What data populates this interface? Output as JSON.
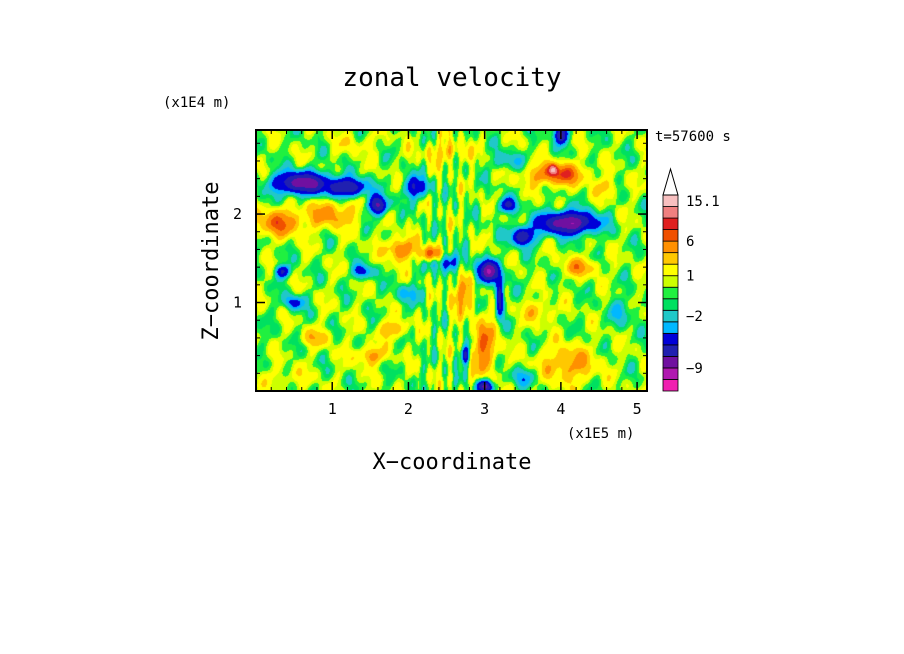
{
  "chart_data": {
    "type": "heatmap",
    "title": "zonal velocity",
    "xlabel": "X−coordinate",
    "ylabel": "Z−coordinate",
    "x_unit": "(x1E5 m)",
    "y_unit": "(x1E4 m)",
    "time_label": "t=57600 s",
    "xlim": [
      0,
      5.13
    ],
    "ylim": [
      0,
      2.95
    ],
    "x_ticks": [
      1,
      2,
      3,
      4,
      5
    ],
    "x_tick_labels": [
      "1",
      "2",
      "3",
      "4",
      "5"
    ],
    "y_ticks": [
      1,
      2
    ],
    "y_tick_labels": [
      "1",
      "2"
    ],
    "colorbar": {
      "colors": [
        "#f020b0",
        "#b018b0",
        "#7010a0",
        "#2020b0",
        "#0000d8",
        "#00b8ff",
        "#20c8c8",
        "#00e060",
        "#20f040",
        "#ccff00",
        "#ffff00",
        "#ffc800",
        "#ff9000",
        "#f05000",
        "#e02020",
        "#f08080",
        "#f8c0c0"
      ],
      "tick_labels": [
        "15.1",
        "6",
        "1",
        "−2",
        "−9"
      ],
      "tick_level_index": [
        16.5,
        13,
        10,
        6.5,
        2
      ]
    },
    "features": [
      {
        "x": 0.6,
        "z": 2.35,
        "sx": 0.35,
        "sz": 0.12,
        "v": -9
      },
      {
        "x": 1.2,
        "z": 2.3,
        "sx": 0.25,
        "sz": 0.1,
        "v": -7
      },
      {
        "x": 1.6,
        "z": 2.1,
        "sx": 0.12,
        "sz": 0.1,
        "v": -8
      },
      {
        "x": 2.1,
        "z": 2.3,
        "sx": 0.15,
        "sz": 0.12,
        "v": -5
      },
      {
        "x": 4.1,
        "z": 1.9,
        "sx": 0.35,
        "sz": 0.12,
        "v": -10
      },
      {
        "x": 3.5,
        "z": 1.75,
        "sx": 0.15,
        "sz": 0.1,
        "v": -7
      },
      {
        "x": 3.05,
        "z": 1.35,
        "sx": 0.15,
        "sz": 0.12,
        "v": -9
      },
      {
        "x": 3.3,
        "z": 2.1,
        "sx": 0.12,
        "sz": 0.08,
        "v": -5
      },
      {
        "x": 3.2,
        "z": 1.05,
        "sx": 0.05,
        "sz": 0.2,
        "v": -7
      },
      {
        "x": 4.0,
        "z": 2.9,
        "sx": 0.08,
        "sz": 0.1,
        "v": -8
      },
      {
        "x": 3.0,
        "z": 0.05,
        "sx": 0.1,
        "sz": 0.07,
        "v": -8
      },
      {
        "x": 2.75,
        "z": 0.4,
        "sx": 0.05,
        "sz": 0.1,
        "v": -6
      },
      {
        "x": 0.35,
        "z": 1.35,
        "sx": 0.1,
        "sz": 0.07,
        "v": -5
      },
      {
        "x": 1.4,
        "z": 1.35,
        "sx": 0.12,
        "sz": 0.08,
        "v": -4
      },
      {
        "x": 2.5,
        "z": 1.45,
        "sx": 0.18,
        "sz": 0.1,
        "v": -4
      },
      {
        "x": 0.5,
        "z": 1.0,
        "sx": 0.12,
        "sz": 0.08,
        "v": -4
      },
      {
        "x": 0.3,
        "z": 1.9,
        "sx": 0.3,
        "sz": 0.15,
        "v": 4
      },
      {
        "x": 1.0,
        "z": 2.0,
        "sx": 0.35,
        "sz": 0.15,
        "v": 3
      },
      {
        "x": 1.9,
        "z": 1.6,
        "sx": 0.2,
        "sz": 0.12,
        "v": 4
      },
      {
        "x": 2.3,
        "z": 1.55,
        "sx": 0.12,
        "sz": 0.08,
        "v": 5
      },
      {
        "x": 3.95,
        "z": 2.45,
        "sx": 0.35,
        "sz": 0.12,
        "v": 5
      },
      {
        "x": 3.9,
        "z": 2.5,
        "sx": 0.05,
        "sz": 0.05,
        "v": 8
      },
      {
        "x": 4.25,
        "z": 1.4,
        "sx": 0.22,
        "sz": 0.1,
        "v": 3
      },
      {
        "x": 3.0,
        "z": 0.5,
        "sx": 0.15,
        "sz": 0.3,
        "v": 4
      },
      {
        "x": 4.1,
        "z": 0.3,
        "sx": 0.35,
        "sz": 0.2,
        "v": 3
      },
      {
        "x": 1.5,
        "z": 0.4,
        "sx": 0.2,
        "sz": 0.1,
        "v": 3
      },
      {
        "x": 1.8,
        "z": 0.7,
        "sx": 0.15,
        "sz": 0.1,
        "v": 3
      },
      {
        "x": 3.7,
        "z": 0.9,
        "sx": 0.2,
        "sz": 0.12,
        "v": 2
      },
      {
        "x": 0.8,
        "z": 0.6,
        "sx": 0.2,
        "sz": 0.1,
        "v": 2
      },
      {
        "x": 2.7,
        "z": 1.1,
        "sx": 0.15,
        "sz": 0.2,
        "v": 3
      },
      {
        "x": 4.6,
        "z": 2.3,
        "sx": 0.15,
        "sz": 0.1,
        "v": 2
      },
      {
        "x": 2.5,
        "z": 2.7,
        "sx": 0.3,
        "sz": 0.12,
        "v": 2
      },
      {
        "x": 1.3,
        "z": 2.8,
        "sx": 0.3,
        "sz": 0.1,
        "v": 1
      },
      {
        "x": 0.4,
        "z": 0.15,
        "sx": 0.3,
        "sz": 0.12,
        "v": 1
      },
      {
        "x": 3.5,
        "z": 0.15,
        "sx": 0.2,
        "sz": 0.1,
        "v": -2
      },
      {
        "x": 4.8,
        "z": 0.9,
        "sx": 0.15,
        "sz": 0.15,
        "v": -2
      },
      {
        "x": 2.0,
        "z": 1.1,
        "sx": 0.2,
        "sz": 0.1,
        "v": -2
      },
      {
        "x": 3.3,
        "z": 2.6,
        "sx": 0.2,
        "sz": 0.1,
        "v": -2
      }
    ]
  }
}
